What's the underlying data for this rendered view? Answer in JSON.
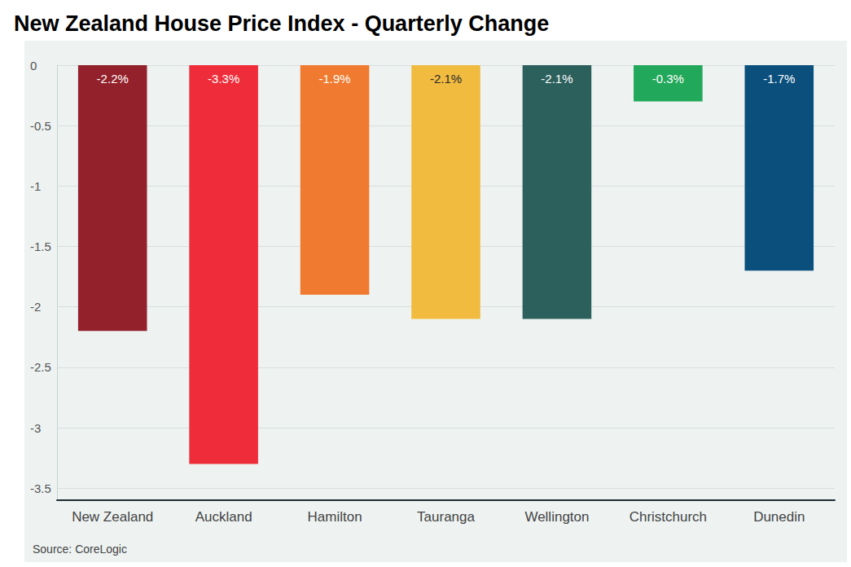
{
  "chart_data": {
    "type": "bar",
    "title": "New Zealand House Price Index - Quarterly Change",
    "source": "Source: CoreLogic",
    "categories": [
      "New Zealand",
      "Auckland",
      "Hamilton",
      "Tauranga",
      "Wellington",
      "Christchurch",
      "Dunedin"
    ],
    "values": [
      -2.2,
      -3.3,
      -1.9,
      -2.1,
      -2.1,
      -0.3,
      -1.7
    ],
    "value_labels": [
      "-2.2%",
      "-3.3%",
      "-1.9%",
      "-2.1%",
      "-2.1%",
      "-0.3%",
      "-1.7%"
    ],
    "colors": [
      "#93212b",
      "#ef2d3a",
      "#f07a2f",
      "#f1bb40",
      "#2c605c",
      "#22a85a",
      "#0b4f7c"
    ],
    "ylim": [
      -3.6,
      0
    ],
    "yticks": [
      -3.5,
      -3,
      -2.5,
      -2,
      -1.5,
      -1,
      -0.5,
      0
    ],
    "grid": true,
    "data_labels": true
  }
}
